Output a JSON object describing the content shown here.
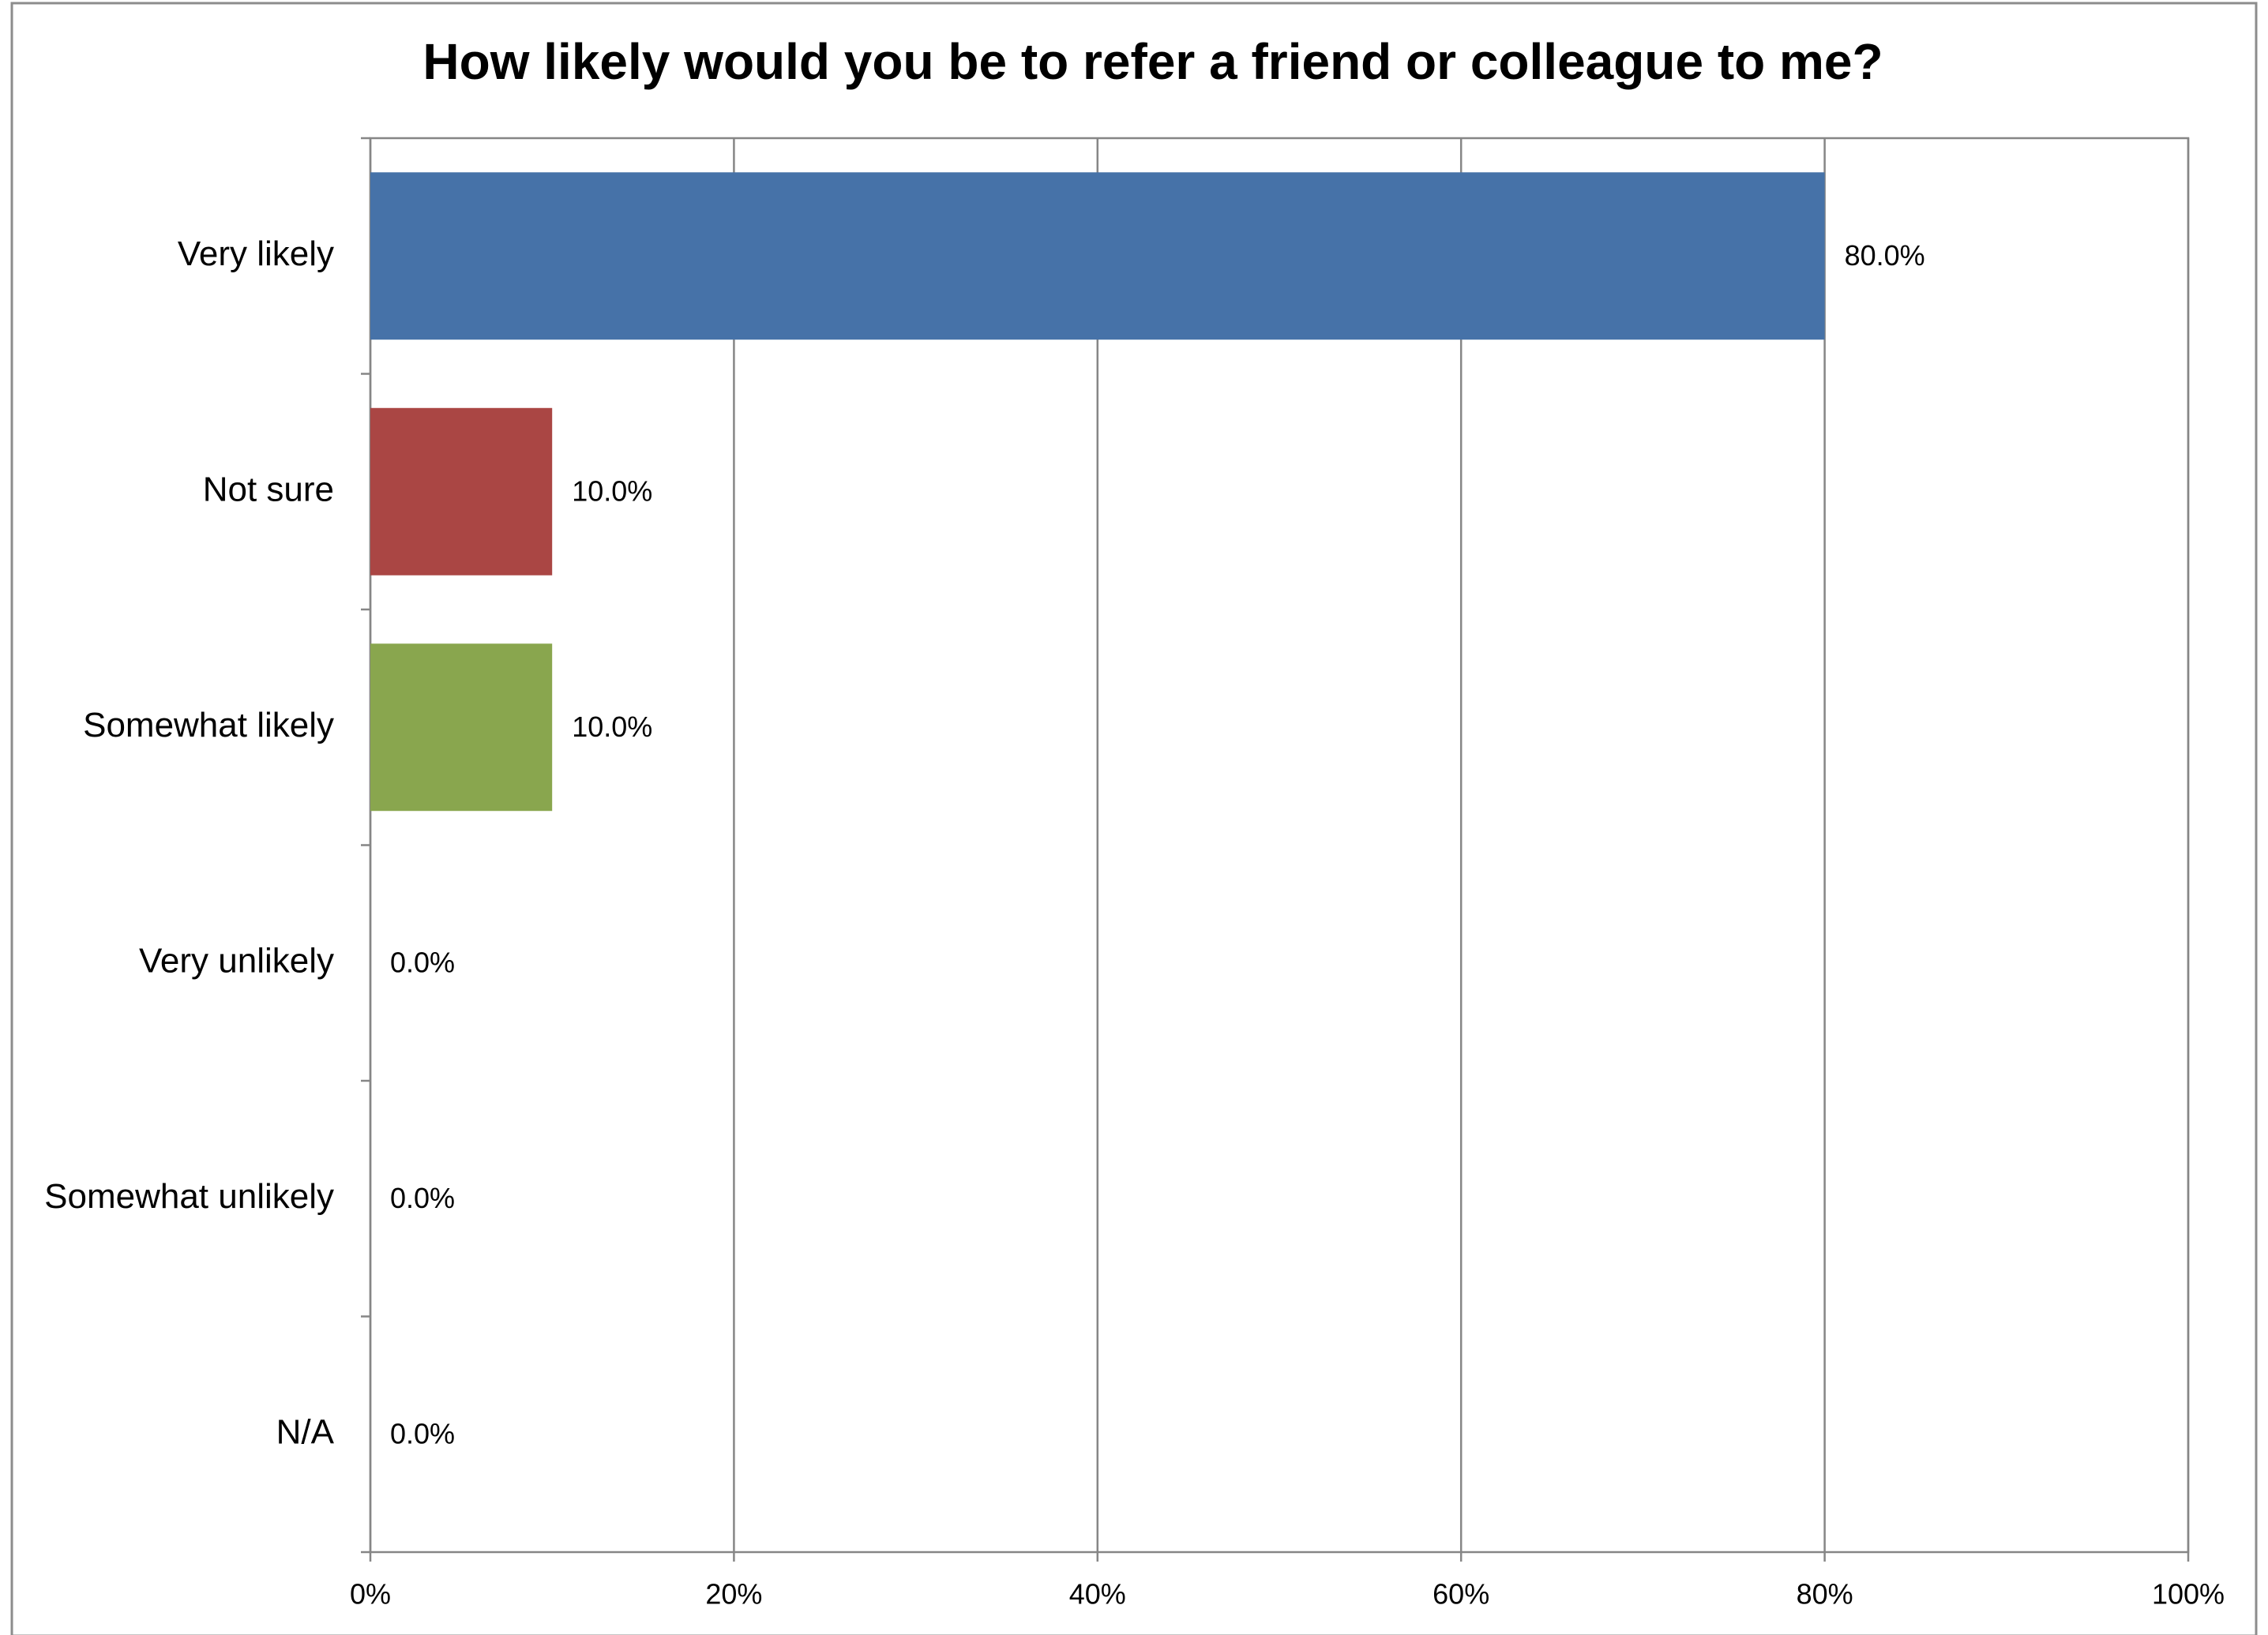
{
  "chart_data": {
    "type": "hbar",
    "title": "How likely would you be to refer a friend or colleague to me?",
    "categories": [
      "Very likely",
      "Not sure",
      "Somewhat likely",
      "Very unlikely",
      "Somewhat unlikely",
      "N/A"
    ],
    "values": [
      80,
      10,
      10,
      0,
      0,
      0
    ],
    "value_labels": [
      "80.0%",
      "10.0%",
      "10.0%",
      "0.0%",
      "0.0%",
      "0.0%"
    ],
    "colors": [
      "#4672a8",
      "#aa4644",
      "#89a64e",
      "#71588f",
      "#4198af",
      "#db843d"
    ],
    "xlim": [
      0,
      100
    ],
    "xticks": [
      {
        "value": 0,
        "label": "0%"
      },
      {
        "value": 20,
        "label": "20%"
      },
      {
        "value": 40,
        "label": "40%"
      },
      {
        "value": 60,
        "label": "60%"
      },
      {
        "value": 80,
        "label": "80%"
      },
      {
        "value": 100,
        "label": "100%"
      }
    ],
    "grid": true
  }
}
